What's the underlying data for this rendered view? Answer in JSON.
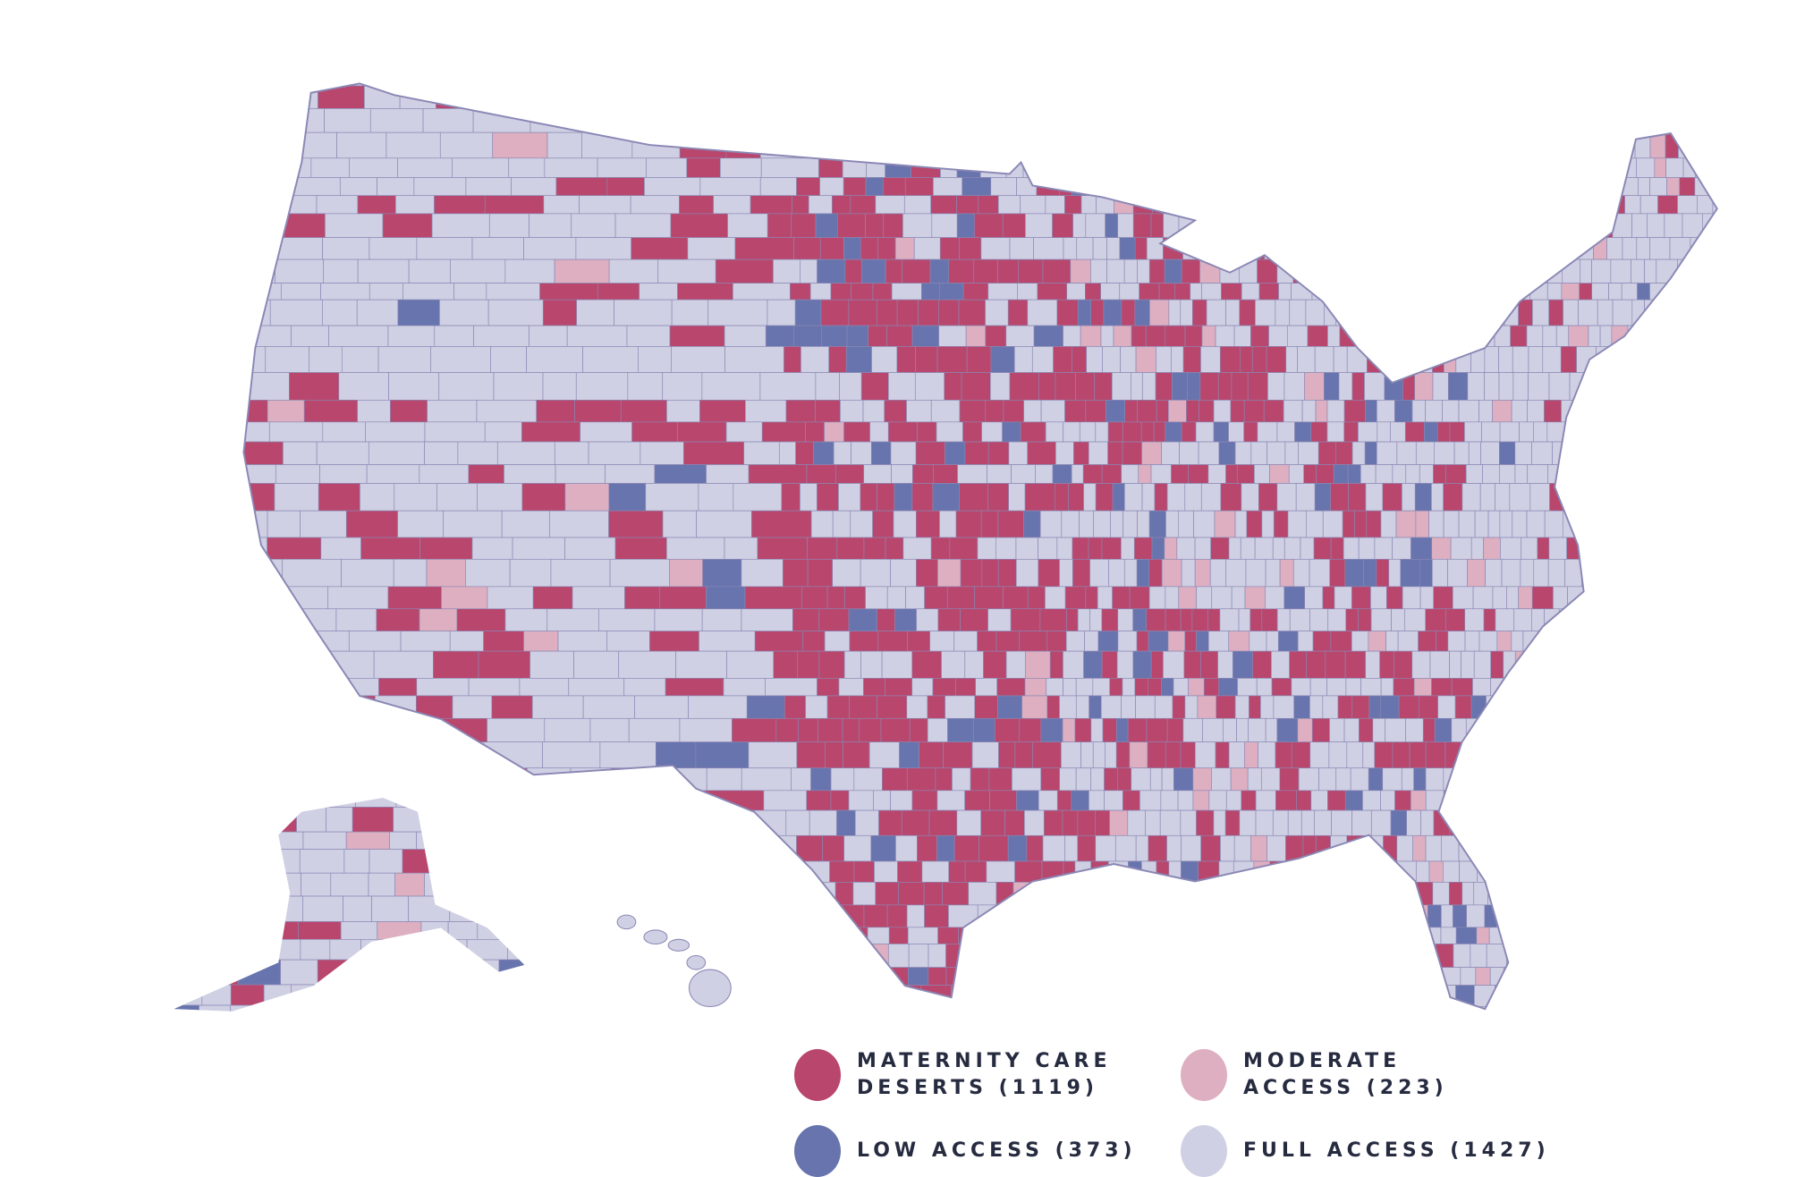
{
  "map": {
    "colors": {
      "desert": "#b9466c",
      "moderate": "#ddafc0",
      "low": "#6874ad",
      "full": "#cfd0e3",
      "border": "#8a87b5"
    }
  },
  "legend": [
    {
      "key": "desert",
      "label": "MATERNITY CARE DESERTS (1119)",
      "color": "#b9466c"
    },
    {
      "key": "moderate",
      "label": "MODERATE ACCESS (223)",
      "color": "#ddafc0"
    },
    {
      "key": "low",
      "label": "LOW ACCESS (373)",
      "color": "#6874ad"
    },
    {
      "key": "full",
      "label": "FULL ACCESS (1427)",
      "color": "#cfd0e3"
    }
  ]
}
